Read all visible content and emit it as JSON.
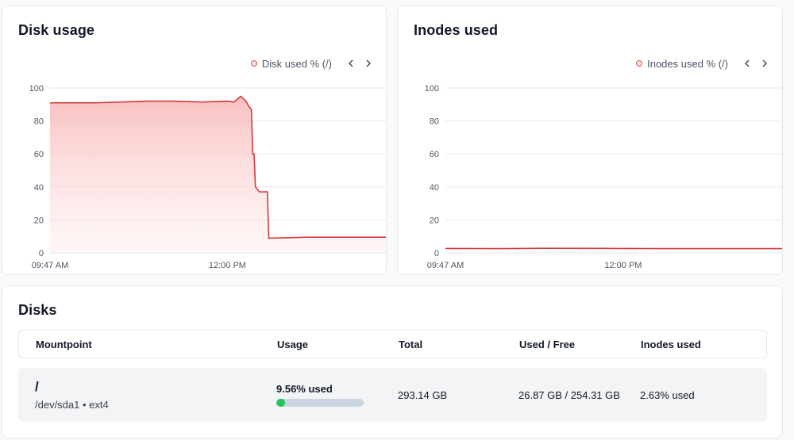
{
  "disk_card": {
    "title": "Disk usage",
    "legend": "Disk used % (/)",
    "chart_data": {
      "type": "area",
      "title": "",
      "ylim": [
        0,
        100
      ],
      "yticks": [
        "100",
        "80",
        "60",
        "40",
        "20",
        "0"
      ],
      "xticks": [
        "09:47 AM",
        "12:00 PM"
      ],
      "x": [
        "09:47",
        "10:00",
        "10:20",
        "10:40",
        "11:00",
        "11:20",
        "11:40",
        "12:00",
        "12:05",
        "12:10",
        "12:14",
        "12:16",
        "12:18",
        "12:19",
        "12:20",
        "12:21",
        "12:24",
        "12:28",
        "12:30",
        "12:31",
        "12:35",
        "13:00",
        "13:30",
        "14:00"
      ],
      "series": [
        {
          "values": [
            91,
            91,
            91,
            91.5,
            92,
            92,
            91.5,
            92,
            91.5,
            95,
            92,
            89,
            87,
            60,
            60,
            40,
            37,
            37,
            37,
            9,
            9,
            9.5,
            9.5,
            9.5
          ]
        }
      ],
      "color": "#d33a3a"
    }
  },
  "inodes_card": {
    "title": "Inodes used",
    "legend": "Inodes used % (/)",
    "chart_data": {
      "type": "line",
      "title": "",
      "ylim": [
        0,
        100
      ],
      "yticks": [
        "100",
        "80",
        "60",
        "40",
        "20",
        "0"
      ],
      "xticks": [
        "09:47 AM",
        "12:00 PM"
      ],
      "x": [
        "09:47",
        "10:30",
        "11:00",
        "12:00",
        "12:30",
        "13:00",
        "14:00"
      ],
      "series": [
        {
          "values": [
            2.7,
            2.6,
            2.8,
            2.7,
            2.6,
            2.6,
            2.6
          ]
        }
      ],
      "color": "#d33a3a"
    }
  },
  "disks": {
    "title": "Disks",
    "headers": {
      "mountpoint": "Mountpoint",
      "usage": "Usage",
      "total": "Total",
      "used_free": "Used / Free",
      "inodes": "Inodes used"
    },
    "rows": [
      {
        "mount": "/",
        "device": "/dev/sda1 • ext4",
        "usage_text": "9.56% used",
        "usage_percent": 9.56,
        "total": "293.14 GB",
        "used_free": "26.87 GB / 254.31 GB",
        "inodes": "2.63% used"
      }
    ]
  },
  "colors": {
    "accent": "#d33a3a",
    "usage_bar": "#22c55e",
    "usage_track": "#cbd5e1"
  }
}
